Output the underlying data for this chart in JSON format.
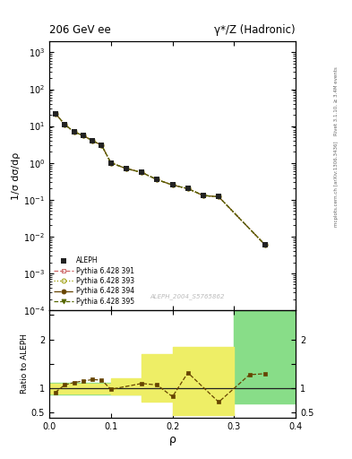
{
  "title_left": "206 GeV ee",
  "title_right": "γ*/Z (Hadronic)",
  "ylabel_main": "1/σ dσ/dρ",
  "ylabel_ratio": "Ratio to ALEPH",
  "xlabel": "ρ",
  "right_label_top": "Rivet 3.1.10, ≥ 3.4M events",
  "right_label_bottom": "mcplots.cern.ch [arXiv:1306.3436]",
  "watermark": "ALEPH_2004_S5765862",
  "ylim_main": [
    0.0001,
    2000
  ],
  "ylim_ratio": [
    0.4,
    2.6
  ],
  "xlim": [
    0.0,
    0.4
  ],
  "data_x": [
    0.01,
    0.025,
    0.04,
    0.055,
    0.07,
    0.085,
    0.1,
    0.125,
    0.15,
    0.175,
    0.2,
    0.225,
    0.25,
    0.275,
    0.35
  ],
  "data_y": [
    22.0,
    11.0,
    7.0,
    5.5,
    4.0,
    3.0,
    1.0,
    0.7,
    0.55,
    0.35,
    0.25,
    0.2,
    0.13,
    0.12,
    0.006
  ],
  "ratio_x": [
    0.01,
    0.025,
    0.04,
    0.055,
    0.07,
    0.085,
    0.1,
    0.15,
    0.175,
    0.2,
    0.225,
    0.275,
    0.325,
    0.35
  ],
  "ratio_y": [
    0.92,
    1.07,
    1.12,
    1.15,
    1.18,
    1.17,
    0.98,
    1.1,
    1.07,
    0.83,
    1.32,
    0.72,
    1.28,
    1.3
  ],
  "green_band_edges": [
    0.0,
    0.15,
    0.3,
    0.4
  ],
  "green_band_low": [
    0.88,
    0.88,
    0.7,
    0.7
  ],
  "green_band_high": [
    1.12,
    1.12,
    2.6,
    2.6
  ],
  "yellow_band_edges": [
    0.0,
    0.1,
    0.15,
    0.2,
    0.3
  ],
  "yellow_band_low": [
    0.9,
    0.88,
    0.72,
    0.45,
    0.45
  ],
  "yellow_band_high": [
    1.1,
    1.2,
    1.7,
    1.85,
    1.6
  ],
  "aleph_color": "#222222",
  "py391_color": "#cc6666",
  "py393_color": "#999900",
  "py394_color": "#664400",
  "py395_color": "#556600",
  "background_color": "#ffffff",
  "green_color": "#88dd88",
  "yellow_color": "#eeee66",
  "ratio_line_color": "#664400"
}
